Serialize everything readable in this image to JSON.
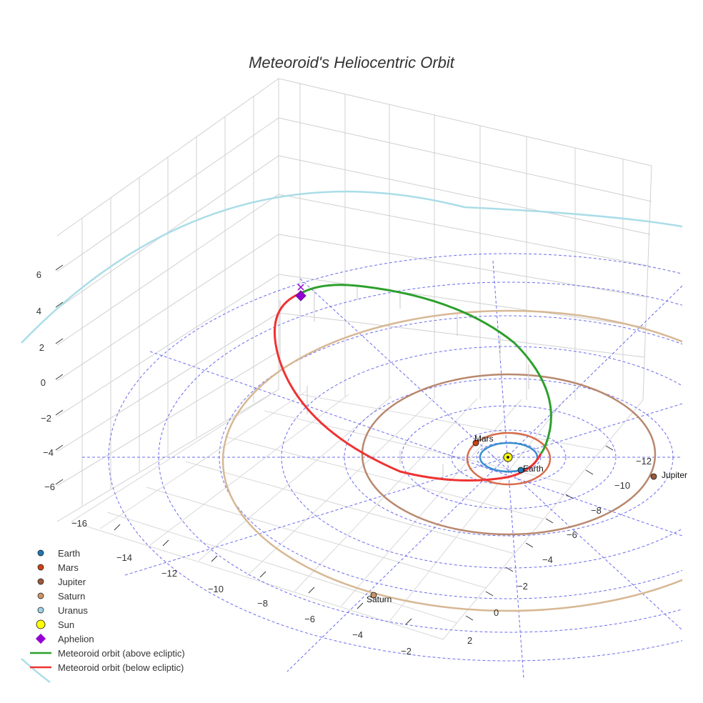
{
  "chart_data": {
    "type": "scatter3d",
    "title": "Meteoroid's Heliocentric Orbit",
    "axes": {
      "x_ticks": [
        -16,
        -14,
        -12,
        -10,
        -8,
        -6,
        -4,
        -2
      ],
      "y_ticks": [
        -12,
        -10,
        -8,
        -6,
        -4,
        -2,
        0,
        2
      ],
      "z_ticks": [
        6,
        4,
        2,
        0,
        -2,
        -4,
        -6
      ],
      "z_range": [
        -7,
        7
      ]
    },
    "planets": [
      {
        "name": "Earth",
        "color": "#1f77b4",
        "orbit_color": "#3a8fd0",
        "orbit_radius_au": 1.0,
        "label_shown": true
      },
      {
        "name": "Mars",
        "color": "#cc4411",
        "orbit_color": "#d86c4c",
        "orbit_radius_au": 1.52,
        "label_shown": true
      },
      {
        "name": "Jupiter",
        "color": "#9c5a3c",
        "orbit_color": "#b8886e",
        "orbit_radius_au": 5.2,
        "label_shown": true
      },
      {
        "name": "Saturn",
        "color": "#c8956c",
        "orbit_color": "#d7b894",
        "orbit_radius_au": 9.54,
        "label_shown": true
      },
      {
        "name": "Uranus",
        "color": "#9fd3e8",
        "orbit_color": "#aadde8",
        "orbit_radius_au": 19.2,
        "label_shown": false
      }
    ],
    "sun": {
      "name": "Sun",
      "color": "#ffff00",
      "position": [
        0,
        0,
        0
      ]
    },
    "aphelion": {
      "name": "Aphelion",
      "color": "#9400d3",
      "marker": "diamond"
    },
    "meteoroid_orbit": {
      "above_label": "Meteoroid orbit (above ecliptic)",
      "above_color": "#2ca02c",
      "below_label": "Meteoroid orbit (below ecliptic)",
      "below_color": "#ee3333",
      "aphelion_distance_au": 6.2,
      "perihelion_distance_au": 1.0,
      "max_height_au": 4.3
    },
    "legend": [
      {
        "label": "Earth",
        "kind": "dot",
        "color": "#1f77b4"
      },
      {
        "label": "Mars",
        "kind": "dot",
        "color": "#cc4411"
      },
      {
        "label": "Jupiter",
        "kind": "dot",
        "color": "#9c5a3c"
      },
      {
        "label": "Saturn",
        "kind": "dot",
        "color": "#c8956c"
      },
      {
        "label": "Uranus",
        "kind": "dot",
        "color": "#9fd3e8"
      },
      {
        "label": "Sun",
        "kind": "bigdot",
        "color": "#ffff00"
      },
      {
        "label": "Aphelion",
        "kind": "diamond",
        "color": "#9400d3"
      },
      {
        "label": "Meteoroid orbit (above ecliptic)",
        "kind": "line",
        "color": "#2ca02c"
      },
      {
        "label": "Meteoroid orbit (below ecliptic)",
        "kind": "line",
        "color": "#ee3333"
      }
    ],
    "legend_position": "bottom-left"
  }
}
